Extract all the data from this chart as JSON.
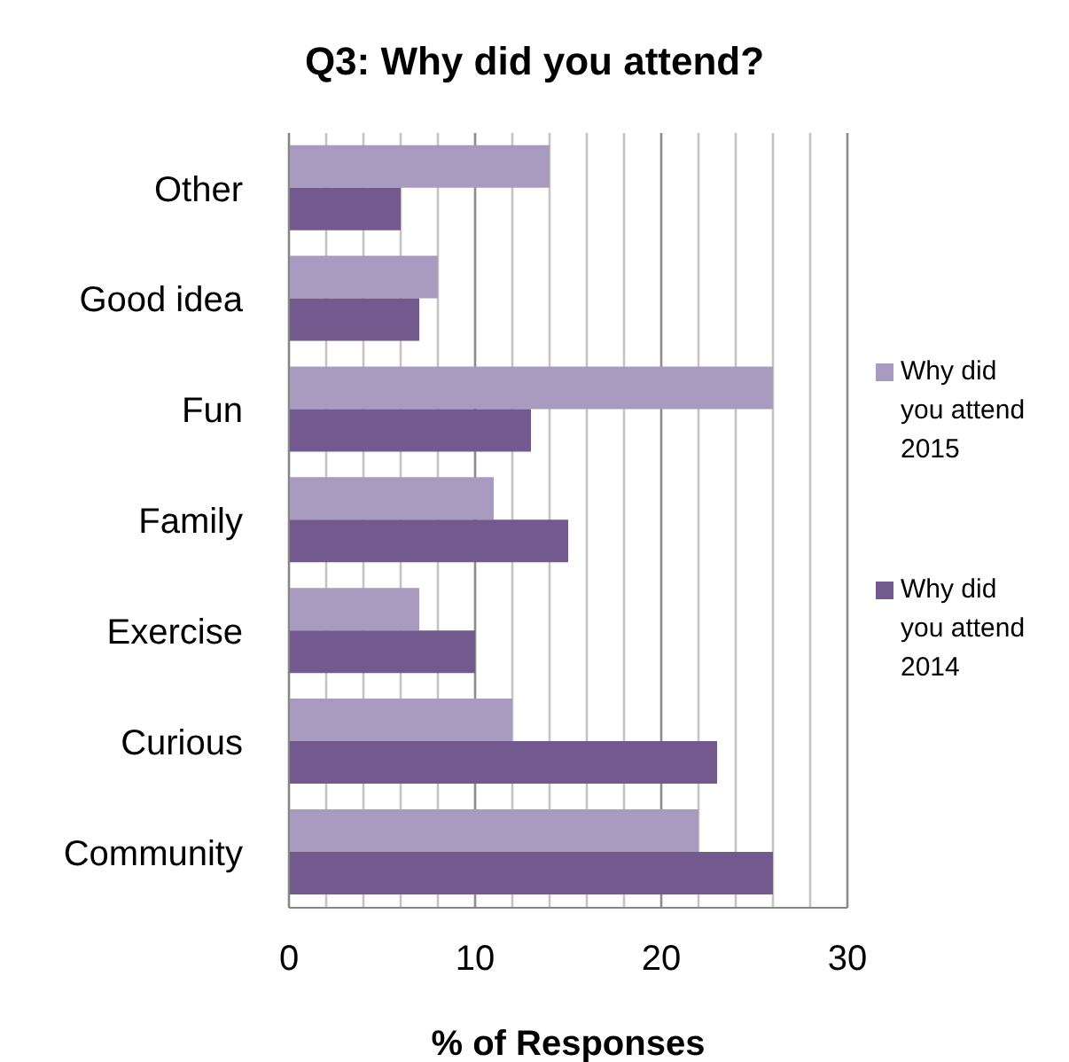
{
  "chart_data": {
    "type": "bar",
    "orientation": "horizontal",
    "title": "Q3: Why did you attend?",
    "xlabel": "% of Responses",
    "categories": [
      "Other",
      "Good idea",
      "Fun",
      "Family",
      "Exercise",
      "Curious",
      "Community"
    ],
    "series": [
      {
        "name": "Why did you attend 2015",
        "color": "#a99bbf",
        "values": [
          14,
          8,
          26,
          11,
          7,
          12,
          22
        ]
      },
      {
        "name": "Why did you attend 2014",
        "color": "#725a8f",
        "values": [
          6,
          7,
          13,
          15,
          10,
          23,
          26
        ]
      }
    ],
    "xlim": [
      0,
      30
    ],
    "xticks": [
      0,
      {
        "value": 2,
        "label": null
      },
      {
        "value": 4,
        "label": null
      },
      {
        "value": 6,
        "label": null
      },
      {
        "value": 8,
        "label": null
      },
      10,
      {
        "value": 12,
        "label": null
      },
      {
        "value": 14,
        "label": null
      },
      {
        "value": 16,
        "label": null
      },
      {
        "value": 18,
        "label": null
      },
      20,
      {
        "value": 22,
        "label": null
      },
      {
        "value": 24,
        "label": null
      },
      {
        "value": 26,
        "label": null
      },
      {
        "value": 28,
        "label": null
      },
      30
    ],
    "grid": "x",
    "legend": "right"
  }
}
